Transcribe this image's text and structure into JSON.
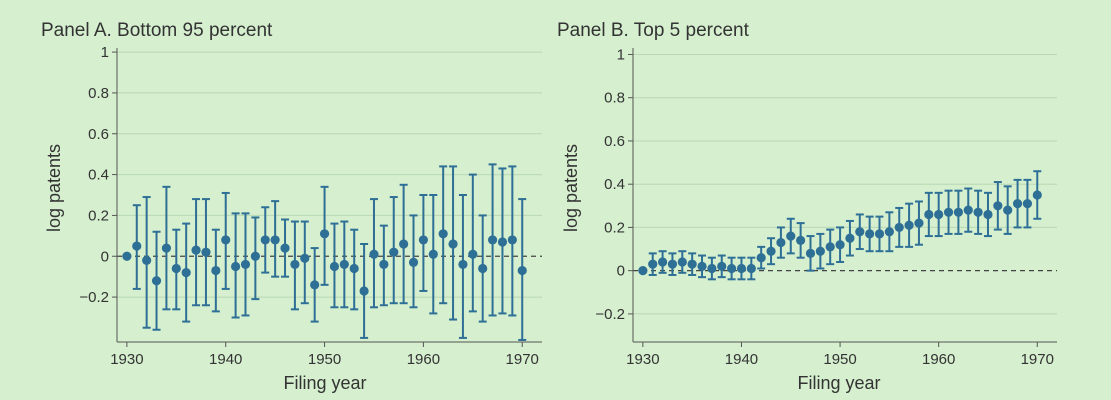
{
  "colors": {
    "background": "#d5efcf",
    "marker": "#2e6f96",
    "gridline": "#b9d8b3",
    "axis": "#555555",
    "text": "#333333"
  },
  "chart_data": [
    {
      "type": "scatter",
      "title": "Panel A. Bottom 95 percent",
      "xlabel": "Filing year",
      "ylabel": "log patents",
      "xlim": [
        1929,
        1972
      ],
      "ylim": [
        -0.42,
        1.02
      ],
      "x_ticks": [
        1930,
        1940,
        1950,
        1960,
        1970
      ],
      "y_ticks": [
        1,
        0.8,
        0.6,
        0.4,
        0.2,
        0,
        -0.2
      ],
      "y_tick_labels": [
        "1",
        "0.8",
        "0.6",
        "0.4",
        "0.2",
        "0",
        "−0.2"
      ],
      "grid": true,
      "reference_line": 0,
      "error_bars": true,
      "x": [
        1930,
        1931,
        1932,
        1933,
        1934,
        1935,
        1936,
        1937,
        1938,
        1939,
        1940,
        1941,
        1942,
        1943,
        1944,
        1945,
        1946,
        1947,
        1948,
        1949,
        1950,
        1951,
        1952,
        1953,
        1954,
        1955,
        1956,
        1957,
        1958,
        1959,
        1960,
        1961,
        1962,
        1963,
        1964,
        1965,
        1966,
        1967,
        1968,
        1969,
        1970
      ],
      "y": [
        0,
        0.05,
        -0.02,
        -0.12,
        0.04,
        -0.06,
        -0.08,
        0.03,
        0.02,
        -0.07,
        0.08,
        -0.05,
        -0.04,
        0,
        0.08,
        0.08,
        0.04,
        -0.04,
        -0.01,
        -0.14,
        0.11,
        -0.05,
        -0.04,
        -0.06,
        -0.17,
        0.01,
        -0.04,
        0.02,
        0.06,
        -0.03,
        0.08,
        0.01,
        0.11,
        0.06,
        -0.04,
        0.01,
        -0.06,
        0.08,
        0.07,
        0.08,
        -0.07
      ],
      "lower": [
        0,
        -0.16,
        -0.35,
        -0.36,
        -0.26,
        -0.26,
        -0.32,
        -0.24,
        -0.24,
        -0.27,
        -0.16,
        -0.3,
        -0.29,
        -0.21,
        -0.08,
        -0.1,
        -0.1,
        -0.26,
        -0.23,
        -0.32,
        -0.14,
        -0.25,
        -0.25,
        -0.26,
        -0.4,
        -0.25,
        -0.24,
        -0.23,
        -0.23,
        -0.25,
        -0.17,
        -0.28,
        -0.23,
        -0.31,
        -0.4,
        -0.27,
        -0.32,
        -0.29,
        -0.28,
        -0.29,
        -0.41
      ],
      "upper": [
        0,
        0.25,
        0.29,
        0.12,
        0.34,
        0.13,
        0.16,
        0.28,
        0.28,
        0.13,
        0.31,
        0.21,
        0.21,
        0.19,
        0.24,
        0.27,
        0.18,
        0.17,
        0.17,
        0.04,
        0.34,
        0.16,
        0.17,
        0.13,
        0.06,
        0.28,
        0.15,
        0.29,
        0.35,
        0.2,
        0.3,
        0.3,
        0.44,
        0.44,
        0.3,
        0.4,
        0.2,
        0.45,
        0.43,
        0.44,
        0.28
      ]
    },
    {
      "type": "scatter",
      "title": "Panel B. Top 5 percent",
      "xlabel": "Filing year",
      "ylabel": "log patents",
      "xlim": [
        1929,
        1972
      ],
      "ylim": [
        -0.33,
        1.03
      ],
      "x_ticks": [
        1930,
        1940,
        1950,
        1960,
        1970
      ],
      "y_ticks": [
        1,
        0.8,
        0.6,
        0.4,
        0.2,
        0,
        -0.2
      ],
      "y_tick_labels": [
        "1",
        "0.8",
        "0.6",
        "0.4",
        "0.2",
        "0",
        "−0.2"
      ],
      "grid": true,
      "reference_line": 0,
      "error_bars": true,
      "x": [
        1930,
        1931,
        1932,
        1933,
        1934,
        1935,
        1936,
        1937,
        1938,
        1939,
        1940,
        1941,
        1942,
        1943,
        1944,
        1945,
        1946,
        1947,
        1948,
        1949,
        1950,
        1951,
        1952,
        1953,
        1954,
        1955,
        1956,
        1957,
        1958,
        1959,
        1960,
        1961,
        1962,
        1963,
        1964,
        1965,
        1966,
        1967,
        1968,
        1969,
        1970
      ],
      "y": [
        0,
        0.03,
        0.04,
        0.03,
        0.04,
        0.03,
        0.02,
        0.01,
        0.02,
        0.01,
        0.01,
        0.01,
        0.06,
        0.09,
        0.13,
        0.16,
        0.14,
        0.08,
        0.09,
        0.11,
        0.12,
        0.15,
        0.18,
        0.17,
        0.17,
        0.18,
        0.2,
        0.21,
        0.22,
        0.26,
        0.26,
        0.27,
        0.27,
        0.28,
        0.27,
        0.26,
        0.3,
        0.28,
        0.31,
        0.31,
        0.35
      ],
      "lower": [
        0,
        -0.02,
        -0.01,
        -0.02,
        -0.01,
        -0.02,
        -0.03,
        -0.04,
        -0.03,
        -0.04,
        -0.04,
        -0.04,
        0.01,
        0.03,
        0.06,
        0.08,
        0.06,
        0,
        0.01,
        0.03,
        0.04,
        0.07,
        0.1,
        0.09,
        0.09,
        0.09,
        0.11,
        0.11,
        0.12,
        0.16,
        0.16,
        0.17,
        0.17,
        0.18,
        0.17,
        0.16,
        0.19,
        0.17,
        0.2,
        0.2,
        0.24
      ],
      "upper": [
        0,
        0.08,
        0.09,
        0.08,
        0.09,
        0.08,
        0.07,
        0.06,
        0.07,
        0.06,
        0.06,
        0.06,
        0.11,
        0.15,
        0.2,
        0.24,
        0.22,
        0.16,
        0.17,
        0.19,
        0.2,
        0.23,
        0.26,
        0.25,
        0.25,
        0.27,
        0.29,
        0.31,
        0.32,
        0.36,
        0.36,
        0.37,
        0.37,
        0.38,
        0.37,
        0.36,
        0.41,
        0.39,
        0.42,
        0.42,
        0.46
      ]
    }
  ]
}
